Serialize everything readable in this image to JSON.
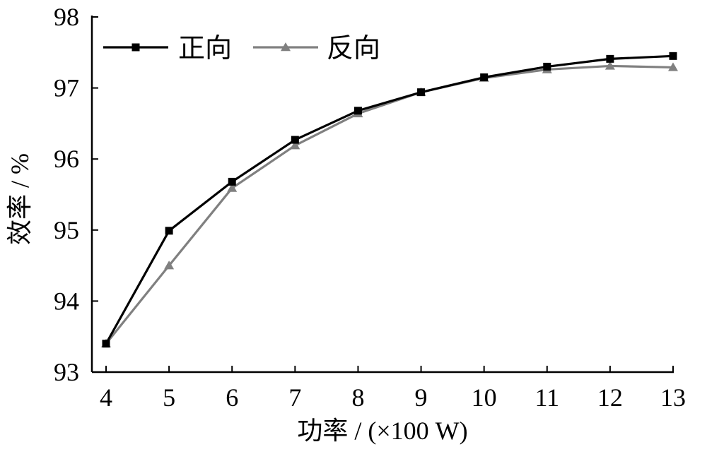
{
  "chart_data": {
    "type": "line",
    "title": "",
    "xlabel": "功率 / (×100 W)",
    "ylabel": "效率 / %",
    "x": [
      4,
      5,
      6,
      7,
      8,
      9,
      10,
      11,
      12,
      13
    ],
    "xlim": [
      4,
      13
    ],
    "ylim": [
      93,
      98
    ],
    "xticks": [
      "4",
      "5",
      "6",
      "7",
      "8",
      "9",
      "10",
      "11",
      "12",
      "13"
    ],
    "yticks": [
      "93",
      "94",
      "95",
      "96",
      "97",
      "98"
    ],
    "grid": false,
    "legend_position": "top-left",
    "series": [
      {
        "name": "正向",
        "marker": "square",
        "color": "#000000",
        "values": [
          93.4,
          94.99,
          95.68,
          96.27,
          96.68,
          96.94,
          97.15,
          97.3,
          97.41,
          97.45
        ]
      },
      {
        "name": "反向",
        "marker": "triangle",
        "color": "#808080",
        "values": [
          93.4,
          94.5,
          95.59,
          96.19,
          96.64,
          96.94,
          97.14,
          97.26,
          97.31,
          97.29
        ]
      }
    ]
  }
}
